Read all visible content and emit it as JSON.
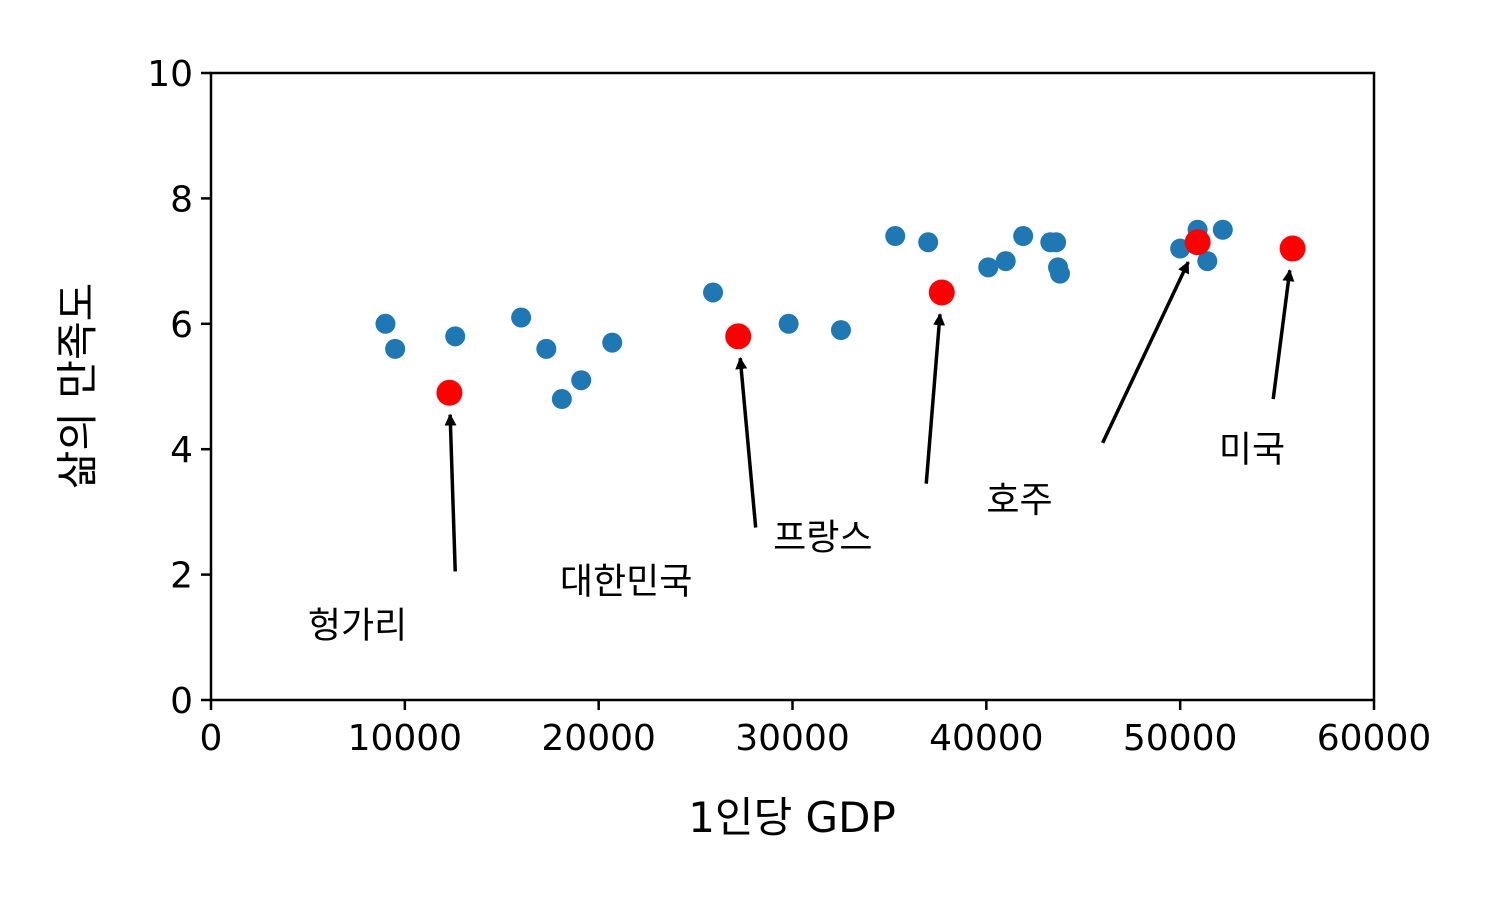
{
  "chart_data": {
    "type": "scatter",
    "xlabel": "1인당 GDP",
    "ylabel": "삶의 만족도",
    "xlim": [
      0,
      60000
    ],
    "ylim": [
      0,
      10
    ],
    "xticks": [
      0,
      10000,
      20000,
      30000,
      40000,
      50000,
      60000
    ],
    "yticks": [
      0,
      2,
      4,
      6,
      8,
      10
    ],
    "xtick_labels": [
      "0",
      "10000",
      "20000",
      "30000",
      "40000",
      "50000",
      "60000"
    ],
    "ytick_labels": [
      "0",
      "2",
      "4",
      "6",
      "8",
      "10"
    ],
    "grid": false,
    "colors": {
      "points": "#1f77b4",
      "highlight": "#ff0000",
      "axis": "#000000"
    },
    "series": [
      {
        "points": [
          {
            "x": 9000,
            "y": 6.0
          },
          {
            "x": 9500,
            "y": 5.6
          },
          {
            "x": 12600,
            "y": 5.8
          },
          {
            "x": 16000,
            "y": 6.1
          },
          {
            "x": 17300,
            "y": 5.6
          },
          {
            "x": 18100,
            "y": 4.8
          },
          {
            "x": 19100,
            "y": 5.1
          },
          {
            "x": 20700,
            "y": 5.7
          },
          {
            "x": 25900,
            "y": 6.5
          },
          {
            "x": 29800,
            "y": 6.0
          },
          {
            "x": 32500,
            "y": 5.9
          },
          {
            "x": 35300,
            "y": 7.4
          },
          {
            "x": 37000,
            "y": 7.3
          },
          {
            "x": 40100,
            "y": 6.9
          },
          {
            "x": 41000,
            "y": 7.0
          },
          {
            "x": 41900,
            "y": 7.4
          },
          {
            "x": 43300,
            "y": 7.3
          },
          {
            "x": 43600,
            "y": 7.3
          },
          {
            "x": 43700,
            "y": 6.9
          },
          {
            "x": 43800,
            "y": 6.8
          },
          {
            "x": 50000,
            "y": 7.2
          },
          {
            "x": 50900,
            "y": 7.5
          },
          {
            "x": 51400,
            "y": 7.0
          },
          {
            "x": 52200,
            "y": 7.5
          }
        ]
      },
      {
        "points": [
          {
            "x": 12300,
            "y": 4.9
          },
          {
            "x": 27200,
            "y": 5.8
          },
          {
            "x": 37700,
            "y": 6.5
          },
          {
            "x": 50900,
            "y": 7.3
          },
          {
            "x": 55800,
            "y": 7.2
          }
        ]
      }
    ],
    "annotations": [
      {
        "text": "헝가리",
        "point": {
          "x": 12300,
          "y": 4.9
        },
        "text_pos": {
          "x": 5000,
          "y": 1.0
        },
        "arrow_tail": {
          "x": 12600,
          "y": 2.05
        }
      },
      {
        "text": "대한민국",
        "point": {
          "x": 27200,
          "y": 5.8
        },
        "text_pos": {
          "x": 18000,
          "y": 1.7
        },
        "arrow_tail": {
          "x": 28100,
          "y": 2.75
        }
      },
      {
        "text": "프랑스",
        "point": {
          "x": 37700,
          "y": 6.5
        },
        "text_pos": {
          "x": 29000,
          "y": 2.4
        },
        "arrow_tail": {
          "x": 36900,
          "y": 3.45
        }
      },
      {
        "text": "호주",
        "point": {
          "x": 50900,
          "y": 7.3
        },
        "text_pos": {
          "x": 40000,
          "y": 3.0
        },
        "arrow_tail": {
          "x": 46000,
          "y": 4.1
        }
      },
      {
        "text": "미국",
        "point": {
          "x": 55800,
          "y": 7.2
        },
        "text_pos": {
          "x": 52000,
          "y": 3.8
        },
        "arrow_tail": {
          "x": 54800,
          "y": 4.8
        }
      }
    ]
  }
}
